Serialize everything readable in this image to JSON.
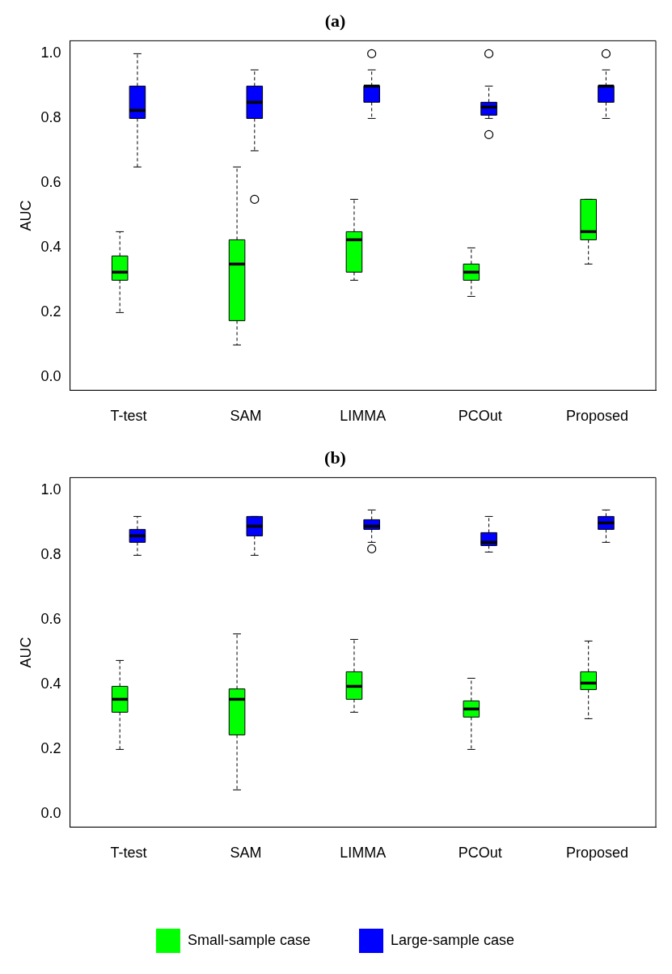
{
  "chart_data": [
    {
      "type": "box",
      "title": "(a)",
      "ylabel": "AUC",
      "categories": [
        "T-test",
        "SAM",
        "LIMMA",
        "PCOut",
        "Proposed"
      ],
      "ylim": [
        -0.04,
        1.04
      ],
      "yticks": [
        {
          "value": 0,
          "label": "0.0"
        },
        {
          "value": 0.2,
          "label": "0.2"
        },
        {
          "value": 0.4,
          "label": "0.4"
        },
        {
          "value": 0.6,
          "label": "0.6"
        },
        {
          "value": 0.8,
          "label": "0.8"
        },
        {
          "value": 1,
          "label": "1.0"
        }
      ],
      "grid": false,
      "legend": false,
      "series": [
        {
          "color": "#00ff00",
          "boxes": [
            {
              "low": 0.2,
              "q1": 0.3,
              "median": 0.325,
              "q3": 0.375,
              "high": 0.45
            },
            {
              "low": 0.1,
              "q1": 0.175,
              "median": 0.35,
              "q3": 0.425,
              "high": 0.65
            },
            {
              "low": 0.3,
              "q1": 0.325,
              "median": 0.425,
              "q3": 0.45,
              "high": 0.55
            },
            {
              "low": 0.25,
              "q1": 0.3,
              "median": 0.325,
              "q3": 0.35,
              "high": 0.4
            },
            {
              "low": 0.35,
              "q1": 0.425,
              "median": 0.45,
              "q3": 0.55,
              "high": 0.55
            }
          ]
        },
        {
          "color": "#0000ff",
          "boxes": [
            {
              "low": 0.65,
              "q1": 0.8,
              "median": 0.825,
              "q3": 0.9,
              "high": 1.0
            },
            {
              "low": 0.7,
              "q1": 0.8,
              "median": 0.85,
              "q3": 0.9,
              "high": 0.95,
              "outliers": [
                0.55
              ]
            },
            {
              "low": 0.8,
              "q1": 0.85,
              "median": 0.9,
              "q3": 0.9,
              "high": 0.95,
              "outliers": [
                1.0
              ]
            },
            {
              "low": 0.8,
              "q1": 0.81,
              "median": 0.835,
              "q3": 0.85,
              "high": 0.9,
              "outliers": [
                1.0,
                0.75
              ]
            },
            {
              "low": 0.8,
              "q1": 0.85,
              "median": 0.9,
              "q3": 0.9,
              "high": 0.95,
              "outliers": [
                1.0
              ]
            }
          ]
        }
      ]
    },
    {
      "type": "box",
      "title": "(b)",
      "ylabel": "AUC",
      "categories": [
        "T-test",
        "SAM",
        "LIMMA",
        "PCOut",
        "Proposed"
      ],
      "ylim": [
        -0.04,
        1.04
      ],
      "yticks": [
        {
          "value": 0,
          "label": "0.0"
        },
        {
          "value": 0.2,
          "label": "0.2"
        },
        {
          "value": 0.4,
          "label": "0.4"
        },
        {
          "value": 0.6,
          "label": "0.6"
        },
        {
          "value": 0.8,
          "label": "0.8"
        },
        {
          "value": 1,
          "label": "1.0"
        }
      ],
      "grid": false,
      "legend": "bottom",
      "series": [
        {
          "name": "Small-sample case",
          "color": "#00ff00",
          "boxes": [
            {
              "low": 0.2,
              "q1": 0.315,
              "median": 0.355,
              "q3": 0.395,
              "high": 0.475
            },
            {
              "low": 0.075,
              "q1": 0.245,
              "median": 0.355,
              "q3": 0.387,
              "high": 0.557
            },
            {
              "low": 0.315,
              "q1": 0.355,
              "median": 0.395,
              "q3": 0.44,
              "high": 0.54
            },
            {
              "low": 0.2,
              "q1": 0.3,
              "median": 0.325,
              "q3": 0.35,
              "high": 0.42
            },
            {
              "low": 0.295,
              "q1": 0.385,
              "median": 0.405,
              "q3": 0.44,
              "high": 0.535
            }
          ]
        },
        {
          "name": "Large-sample case",
          "color": "#0000ff",
          "boxes": [
            {
              "low": 0.8,
              "q1": 0.84,
              "median": 0.86,
              "q3": 0.88,
              "high": 0.92
            },
            {
              "low": 0.8,
              "q1": 0.86,
              "median": 0.89,
              "q3": 0.92,
              "high": 0.92
            },
            {
              "low": 0.84,
              "q1": 0.88,
              "median": 0.89,
              "q3": 0.91,
              "high": 0.94,
              "outliers": [
                0.82
              ]
            },
            {
              "low": 0.81,
              "q1": 0.83,
              "median": 0.84,
              "q3": 0.87,
              "high": 0.92
            },
            {
              "low": 0.84,
              "q1": 0.88,
              "median": 0.9,
              "q3": 0.92,
              "high": 0.94
            }
          ]
        }
      ]
    }
  ]
}
